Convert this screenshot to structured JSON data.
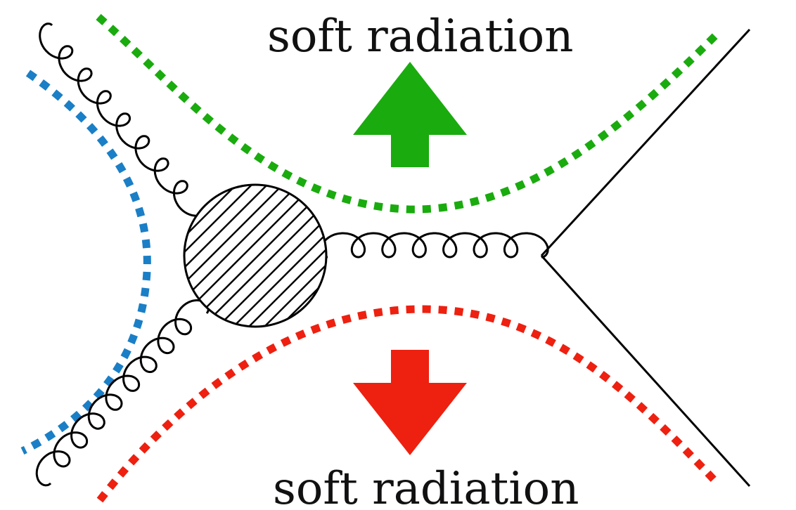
{
  "diagram": {
    "top_label": "soft radiation",
    "bottom_label": "soft radiation"
  },
  "colors": {
    "line": "#000000",
    "upper_region": "#1aab0e",
    "lower_region": "#ee2010",
    "left_region": "#1a7fc6"
  },
  "icons": {
    "up_arrow": "arrow-up-icon",
    "down_arrow": "arrow-down-icon",
    "blob": "hatched-vertex-icon"
  }
}
